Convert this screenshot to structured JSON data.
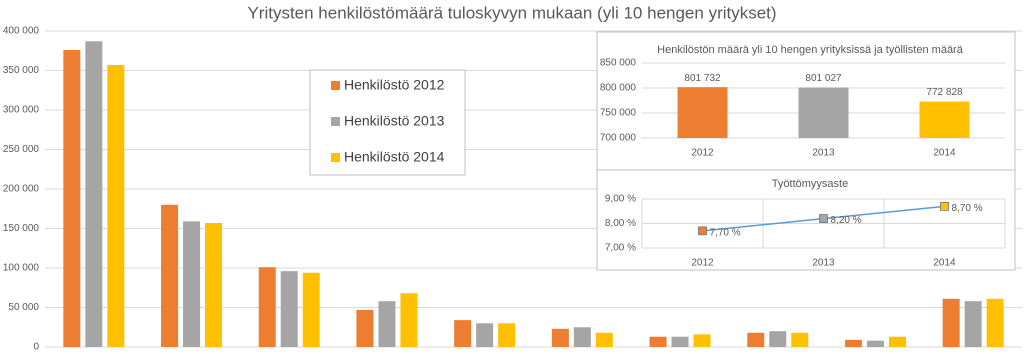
{
  "chart_data": [
    {
      "type": "bar",
      "title": "Yritysten henkilöstömäärä tuloskyvyn mukaan (yli 10 hengen yritykset)",
      "categories": [
        null,
        null,
        null,
        null,
        null,
        null,
        null,
        null,
        null,
        null
      ],
      "series": [
        {
          "name": "Henkilöstö 2012",
          "color": "#ed7d31",
          "values": [
            376000,
            180000,
            101000,
            47000,
            34000,
            23000,
            13000,
            18000,
            9000,
            61000
          ]
        },
        {
          "name": "Henkilöstö 2013",
          "color": "#a5a5a5",
          "values": [
            387000,
            159000,
            96000,
            58000,
            30000,
            25000,
            13000,
            20000,
            8000,
            58000
          ]
        },
        {
          "name": "Henkilöstö 2014",
          "color": "#ffc000",
          "values": [
            357000,
            157000,
            94000,
            68000,
            30000,
            18000,
            16000,
            18000,
            13000,
            61000
          ]
        }
      ],
      "ylim": [
        0,
        400000
      ],
      "yticks": [
        0,
        {
          "value": 50000,
          "label": "50 000"
        },
        {
          "value": 100000,
          "label": "100 000"
        },
        {
          "value": 150000,
          "label": "150 000"
        },
        {
          "value": 200000,
          "label": "200 000"
        },
        {
          "value": 250000,
          "label": "250 000"
        },
        {
          "value": 300000,
          "label": "300 000"
        },
        {
          "value": 350000,
          "label": "350 000"
        },
        {
          "value": 400000,
          "label": "400 000"
        }
      ],
      "grid": true
    },
    {
      "type": "bar",
      "title": "Henkilöstön määrä yli 10 hengen yrityksissä ja työllisten määrä",
      "categories": [
        "2012",
        "2013",
        "2014"
      ],
      "values": [
        801732,
        801027,
        772828
      ],
      "value_labels": [
        "801 732",
        "801 027",
        "772 828"
      ],
      "colors": [
        "#ed7d31",
        "#a5a5a5",
        "#ffc000"
      ],
      "ylim": [
        700000,
        850000
      ],
      "yticks": [
        {
          "value": 700000,
          "label": "700 000"
        },
        {
          "value": 750000,
          "label": "750 000"
        },
        {
          "value": 800000,
          "label": "800 000"
        },
        {
          "value": 850000,
          "label": "850 000"
        }
      ],
      "grid": true
    },
    {
      "type": "line",
      "title": "Työttömyysaste",
      "categories": [
        "2012",
        "2013",
        "2014"
      ],
      "values": [
        7.7,
        8.2,
        8.7
      ],
      "value_labels": [
        "7,70 %",
        "8,20 %",
        "8,70 %"
      ],
      "color": "#5b9bd5",
      "marker_colors": [
        "#ed7d31",
        "#a5a5a5",
        "#ffc000"
      ],
      "ylim": [
        7,
        9
      ],
      "yticks": [
        {
          "value": 7,
          "label": "7,00 %"
        },
        {
          "value": 8,
          "label": "8,00 %"
        },
        {
          "value": 9,
          "label": "9,00 %"
        }
      ],
      "grid": true
    }
  ]
}
